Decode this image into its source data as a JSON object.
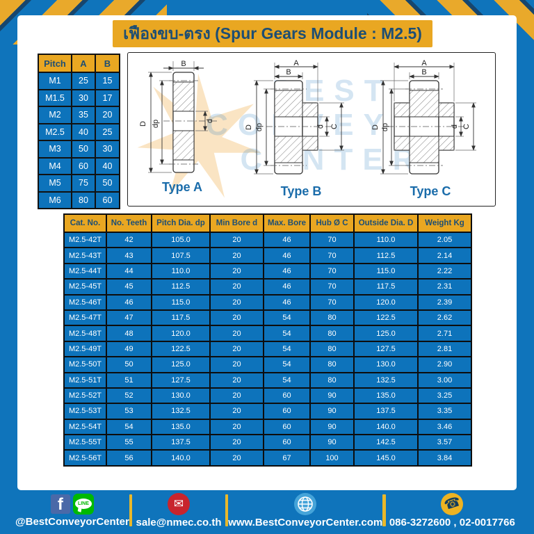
{
  "title": "เฟืองขบ-ตรง (Spur Gears Module : M2.5)",
  "pitch_table": {
    "headers": [
      "Pitch",
      "A",
      "B"
    ],
    "rows": [
      [
        "M1",
        "25",
        "15"
      ],
      [
        "M1.5",
        "30",
        "17"
      ],
      [
        "M2",
        "35",
        "20"
      ],
      [
        "M2.5",
        "40",
        "25"
      ],
      [
        "M3",
        "50",
        "30"
      ],
      [
        "M4",
        "60",
        "40"
      ],
      [
        "M5",
        "75",
        "50"
      ],
      [
        "M6",
        "80",
        "60"
      ]
    ]
  },
  "diagrams": {
    "watermark": {
      "line1": "BEST",
      "line2": "CONVEYOR",
      "line3": "CENTER"
    },
    "dim_labels": {
      "A": "A",
      "B": "B",
      "D": "D",
      "dp": "dp",
      "d": "d",
      "C": "C"
    },
    "types": [
      {
        "label": "Type A"
      },
      {
        "label": "Type B"
      },
      {
        "label": "Type C"
      }
    ]
  },
  "gear_table": {
    "headers": [
      "Cat. No.",
      "No. Teeth",
      "Pitch Dia. dp",
      "Min Bore d",
      "Max. Bore",
      "Hub Ø C",
      "Outside Dia. D",
      "Weight Kg"
    ],
    "rows": [
      [
        "M2.5-42T",
        "42",
        "105.0",
        "20",
        "46",
        "70",
        "110.0",
        "2.05"
      ],
      [
        "M2.5-43T",
        "43",
        "107.5",
        "20",
        "46",
        "70",
        "112.5",
        "2.14"
      ],
      [
        "M2.5-44T",
        "44",
        "110.0",
        "20",
        "46",
        "70",
        "115.0",
        "2.22"
      ],
      [
        "M2.5-45T",
        "45",
        "112.5",
        "20",
        "46",
        "70",
        "117.5",
        "2.31"
      ],
      [
        "M2.5-46T",
        "46",
        "115.0",
        "20",
        "46",
        "70",
        "120.0",
        "2.39"
      ],
      [
        "M2.5-47T",
        "47",
        "117.5",
        "20",
        "54",
        "80",
        "122.5",
        "2.62"
      ],
      [
        "M2.5-48T",
        "48",
        "120.0",
        "20",
        "54",
        "80",
        "125.0",
        "2.71"
      ],
      [
        "M2.5-49T",
        "49",
        "122.5",
        "20",
        "54",
        "80",
        "127.5",
        "2.81"
      ],
      [
        "M2.5-50T",
        "50",
        "125.0",
        "20",
        "54",
        "80",
        "130.0",
        "2.90"
      ],
      [
        "M2.5-51T",
        "51",
        "127.5",
        "20",
        "54",
        "80",
        "132.5",
        "3.00"
      ],
      [
        "M2.5-52T",
        "52",
        "130.0",
        "20",
        "60",
        "90",
        "135.0",
        "3.25"
      ],
      [
        "M2.5-53T",
        "53",
        "132.5",
        "20",
        "60",
        "90",
        "137.5",
        "3.35"
      ],
      [
        "M2.5-54T",
        "54",
        "135.0",
        "20",
        "60",
        "90",
        "140.0",
        "3.46"
      ],
      [
        "M2.5-55T",
        "55",
        "137.5",
        "20",
        "60",
        "90",
        "142.5",
        "3.57"
      ],
      [
        "M2.5-56T",
        "56",
        "140.0",
        "20",
        "67",
        "100",
        "145.0",
        "3.84"
      ]
    ]
  },
  "footer": {
    "social_handle": "@BestConveyorCenter",
    "email": "sale@nmec.co.th",
    "website": "www.BestConveyorCenter.com",
    "phone": "086-3272600 , 02-0017766",
    "facebook_letter": "f",
    "line_label": "LINE",
    "mail_glyph": "✉",
    "phone_glyph": "☎"
  },
  "colors": {
    "page_blue": "#0f74bb",
    "accent_yellow": "#e9a722",
    "navy_text": "#1d4e74",
    "table_cell_blue": "#0d73bb",
    "line_green": "#00b900",
    "facebook_blue": "#4a69a8",
    "mail_red": "#c8242d",
    "globe_blue": "#45a4d9",
    "type_label_blue": "#1a6caa"
  }
}
